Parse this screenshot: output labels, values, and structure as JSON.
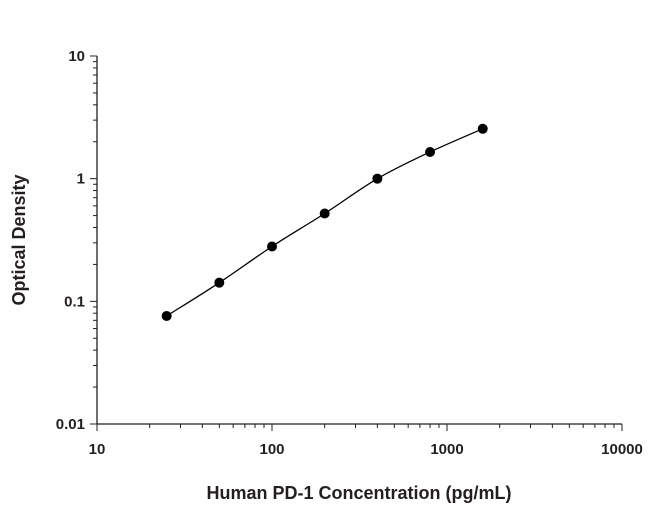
{
  "chart_data": {
    "type": "scatter",
    "title": "",
    "xlabel": "Human PD-1 Concentration (pg/mL)",
    "ylabel": "Optical Density",
    "x_scale": "log",
    "y_scale": "log",
    "xlim": [
      10,
      10000
    ],
    "ylim": [
      0.01,
      10
    ],
    "x_ticks": [
      "10",
      "100",
      "1000",
      "10000"
    ],
    "y_ticks": [
      "0.01",
      "0.1",
      "1",
      "10"
    ],
    "grid": false,
    "fit_line": true,
    "series": [
      {
        "x": [
          25,
          50,
          100,
          200,
          400,
          800,
          1600
        ],
        "y": [
          0.076,
          0.142,
          0.28,
          0.52,
          1.0,
          1.65,
          2.55
        ]
      }
    ],
    "colors": {
      "marker": "#000000",
      "axis": "#231f20"
    }
  }
}
